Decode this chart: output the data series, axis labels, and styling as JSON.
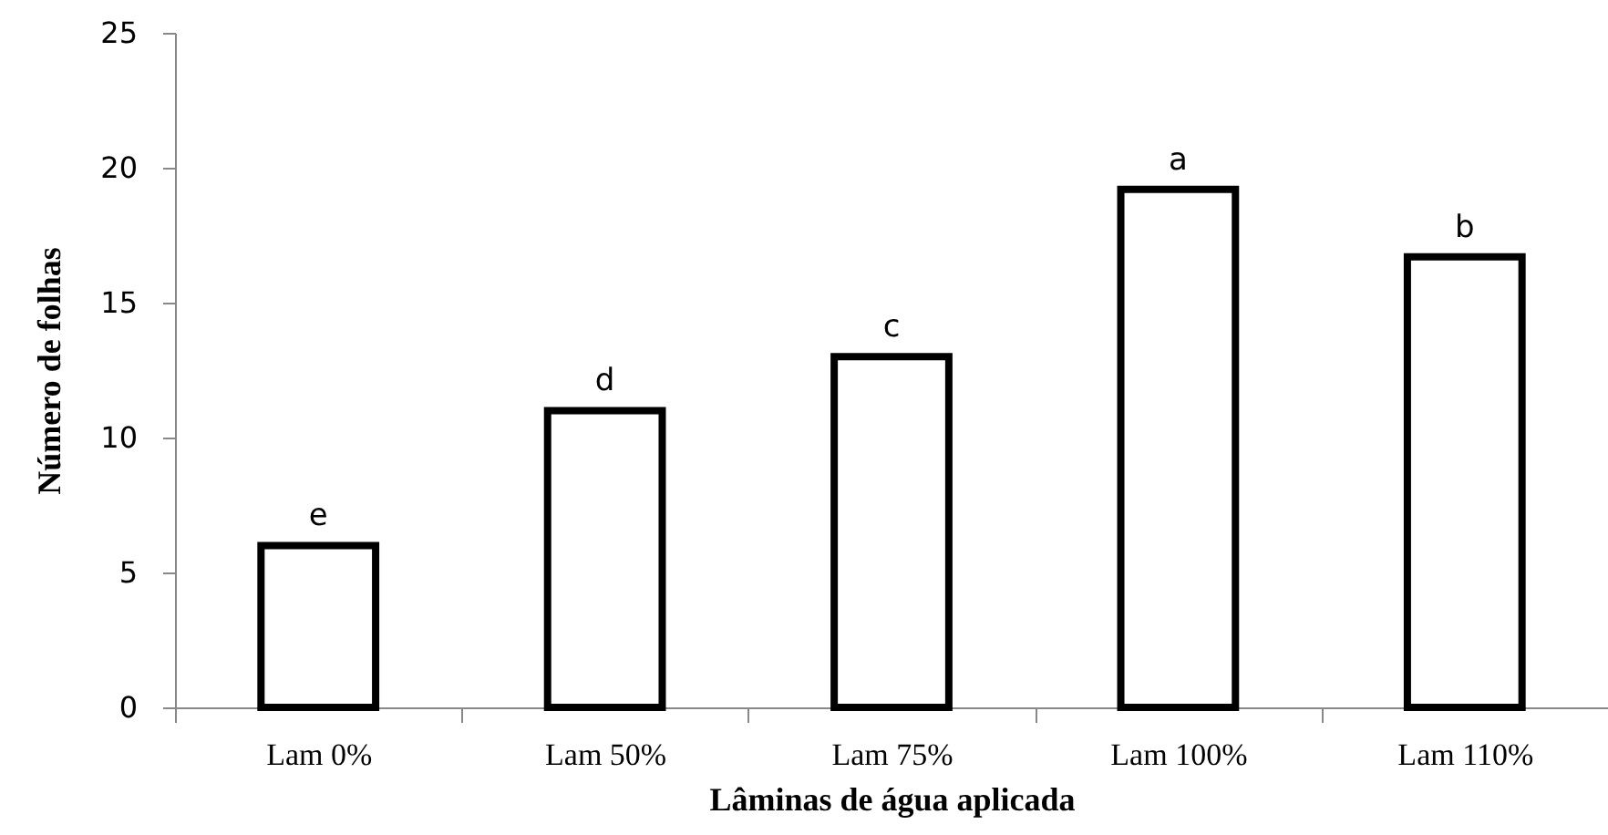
{
  "chart_data": {
    "type": "bar",
    "xlabel": "Lâminas de água aplicada",
    "ylabel": "Número de folhas",
    "categories": [
      "Lam 0%",
      "Lam 50%",
      "Lam 75%",
      "Lam 100%",
      "Lam 110%"
    ],
    "values": [
      6.0,
      11.0,
      13.0,
      19.2,
      16.7
    ],
    "color": "#ffffff",
    "ylim": [
      0,
      25
    ],
    "yticks": [
      0,
      5,
      10,
      15,
      20,
      25
    ],
    "grid": false,
    "annotations": [
      {
        "text": "e",
        "x": "Lam 0%",
        "y": 6.0
      },
      {
        "text": "d",
        "x": "Lam 50%",
        "y": 11.0
      },
      {
        "text": "c",
        "x": "Lam 75%",
        "y": 13.0
      },
      {
        "text": "a",
        "x": "Lam 100%",
        "y": 19.2
      },
      {
        "text": "b",
        "x": "Lam 110%",
        "y": 16.7
      }
    ]
  }
}
